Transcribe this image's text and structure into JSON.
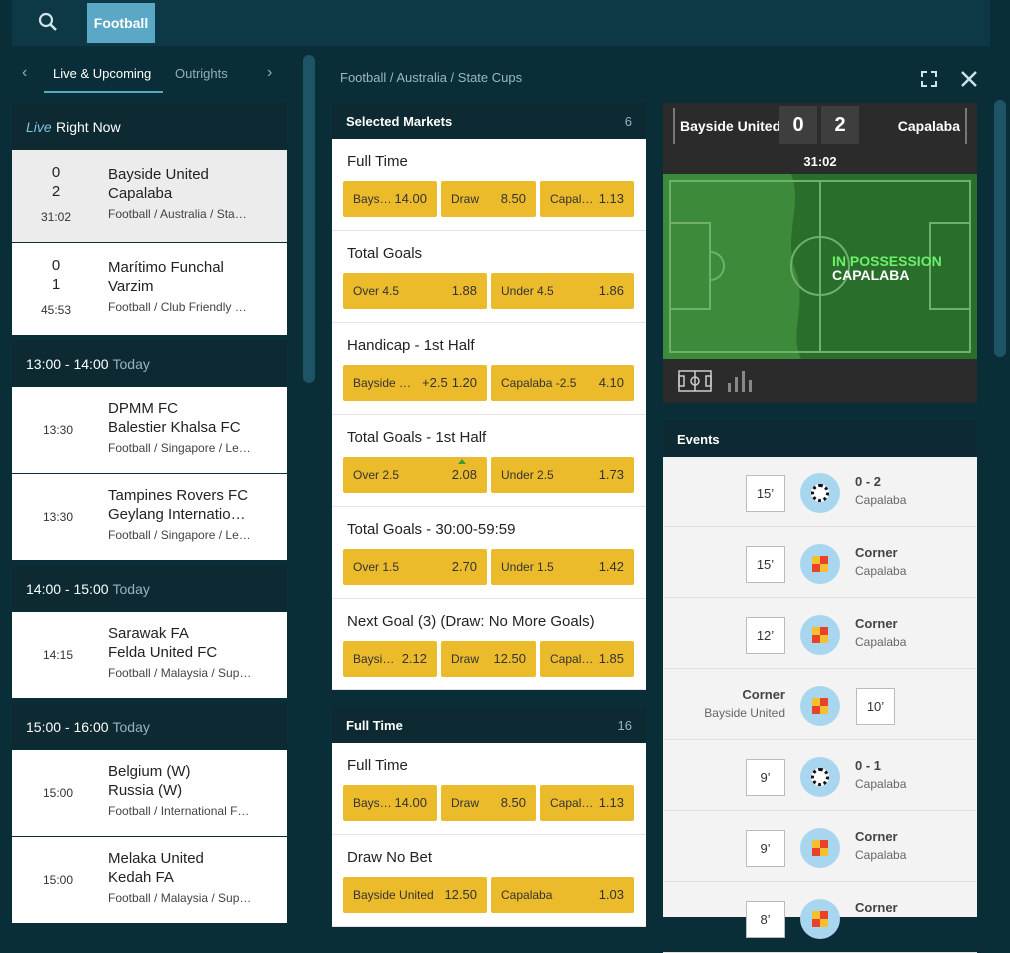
{
  "top_bar": {
    "sport_button": "Football"
  },
  "left_panel": {
    "tabs": [
      "Live & Upcoming",
      "Outrights"
    ],
    "sections": [
      {
        "heading": [
          "Live",
          "Right Now"
        ],
        "matches": [
          {
            "score": [
              0,
              2
            ],
            "time": "31:02",
            "teams": [
              "Bayside United",
              "Capalaba"
            ],
            "league": "Football / Australia / Sta…"
          },
          {
            "score": [
              0,
              1
            ],
            "time": "45:53",
            "teams": [
              "Marítimo Funchal",
              "Varzim"
            ],
            "league": "Football / Club Friendly …"
          }
        ]
      },
      {
        "heading": [
          "13:00 - 14:00",
          "Today"
        ],
        "matches": [
          {
            "time": "13:30",
            "teams": [
              "DPMM FC",
              "Balestier Khalsa FC"
            ],
            "league": "Football / Singapore / Le…"
          },
          {
            "time": "13:30",
            "teams": [
              "Tampines Rovers FC",
              "Geylang Internatio…"
            ],
            "league": "Football / Singapore / Le…"
          }
        ]
      },
      {
        "heading": [
          "14:00 - 15:00",
          "Today"
        ],
        "matches": [
          {
            "time": "14:15",
            "teams": [
              "Sarawak FA",
              "Felda United FC"
            ],
            "league": "Football / Malaysia / Sup…"
          }
        ]
      },
      {
        "heading": [
          "15:00 - 16:00",
          "Today"
        ],
        "matches": [
          {
            "time": "15:00",
            "teams": [
              "Belgium (W)",
              "Russia (W)"
            ],
            "league": "Football / International F…"
          },
          {
            "time": "15:00",
            "teams": [
              "Melaka United",
              "Kedah FA"
            ],
            "league": "Football / Malaysia / Sup…"
          }
        ]
      }
    ]
  },
  "breadcrumb": "Football / Australia / State Cups",
  "market_panels": [
    {
      "title": "Selected Markets",
      "count": 6,
      "markets": [
        {
          "title": "Full Time",
          "selections": [
            {
              "name": "Bays…",
              "odds": "14.00"
            },
            {
              "name": "Draw",
              "odds": "8.50"
            },
            {
              "name": "Capal…",
              "odds": "1.13"
            }
          ]
        },
        {
          "title": "Total Goals",
          "selections": [
            {
              "name": "Over 4.5",
              "odds": "1.88"
            },
            {
              "name": "Under 4.5",
              "odds": "1.86"
            }
          ]
        },
        {
          "title": "Handicap - 1st Half",
          "selections": [
            {
              "name": "Bayside …",
              "line": "+2.5",
              "odds": "1.20"
            },
            {
              "name": "Capalaba -2.5",
              "odds": "4.10"
            }
          ]
        },
        {
          "title": "Total Goals - 1st Half",
          "selections": [
            {
              "name": "Over 2.5",
              "odds": "2.08"
            },
            {
              "name": "Under 2.5",
              "odds": "1.73"
            }
          ]
        },
        {
          "title": "Total Goals - 30:00-59:59",
          "selections": [
            {
              "name": "Over 1.5",
              "odds": "2.70"
            },
            {
              "name": "Under 1.5",
              "odds": "1.42"
            }
          ]
        },
        {
          "title": "Next Goal (3) (Draw: No More Goals)",
          "selections": [
            {
              "name": "Baysi…",
              "odds": "2.12"
            },
            {
              "name": "Draw",
              "odds": "12.50"
            },
            {
              "name": "Capal…",
              "odds": "1.85"
            }
          ]
        }
      ]
    },
    {
      "title": "Full Time",
      "count": 16,
      "markets": [
        {
          "title": "Full Time",
          "selections": [
            {
              "name": "Bays…",
              "odds": "14.00"
            },
            {
              "name": "Draw",
              "odds": "8.50"
            },
            {
              "name": "Capal…",
              "odds": "1.13"
            }
          ]
        },
        {
          "title": "Draw No Bet",
          "selections": [
            {
              "name": "Bayside United",
              "odds": "12.50"
            },
            {
              "name": "Capalaba",
              "odds": "1.03"
            }
          ]
        }
      ]
    }
  ],
  "match": {
    "home": "Bayside United",
    "away": "Capalaba",
    "score": [
      0,
      2
    ],
    "clock": "31:02",
    "possession": [
      "IN POSSESSION",
      "CAPALABA"
    ]
  },
  "events": {
    "title": "Events",
    "items": [
      {
        "minute": "15’",
        "title": "0 - 2",
        "team": "Capalaba"
      },
      {
        "minute": "15’",
        "title": "Corner",
        "team": "Capalaba"
      },
      {
        "minute": "12’",
        "title": "Corner",
        "team": "Capalaba"
      },
      {
        "minute": "10’",
        "title": "Corner",
        "team": "Bayside United"
      },
      {
        "minute": "9’",
        "title": "0 - 1",
        "team": "Capalaba"
      },
      {
        "minute": "9’",
        "title": "Corner",
        "team": "Capalaba"
      },
      {
        "minute": "8’",
        "title": "Corner"
      }
    ]
  }
}
